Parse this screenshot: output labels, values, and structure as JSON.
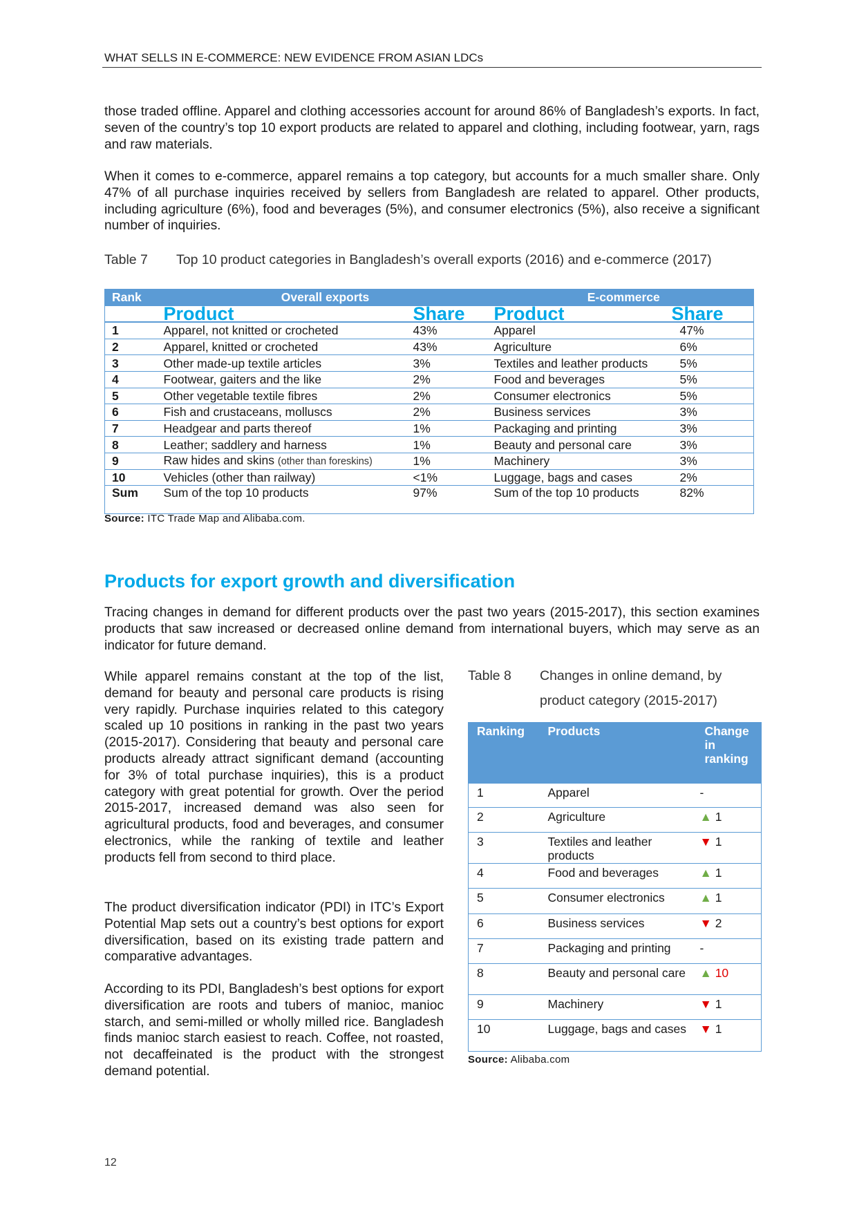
{
  "header": "WHAT SELLS IN E-COMMERCE: NEW EVIDENCE FROM ASIAN LDCs",
  "paragraphs": [
    "those traded offline. Apparel and clothing accessories account for around 86% of Bangladesh’s exports. In fact, seven of the country’s top 10 export products are related to apparel and clothing, including footwear, yarn, rags and raw materials.",
    "When it comes to e-commerce, apparel remains a top category, but accounts for a much smaller share. Only 47% of all purchase inquiries received by sellers from Bangladesh are related to apparel. Other products, including agriculture (6%), food and beverages (5%), and consumer electronics (5%), also receive a significant number of inquiries."
  ],
  "table7": {
    "label": "Table 7",
    "title": "Top 10 product categories in Bangladesh’s overall exports (2016) and e-commerce (2017)",
    "h_rank": "Rank",
    "h_overall": "Overall exports",
    "h_ecom": "E-commerce",
    "h_product": "Product",
    "h_share": "Share",
    "rows": [
      {
        "rank": "1",
        "p1": "Apparel, not knitted or crocheted",
        "s1": "43%",
        "p2": "Apparel",
        "s2": "47%"
      },
      {
        "rank": "2",
        "p1": "Apparel, knitted or crocheted",
        "s1": "43%",
        "p2": "Agriculture",
        "s2": "6%"
      },
      {
        "rank": "3",
        "p1": "Other made-up textile articles",
        "s1": "3%",
        "p2": "Textiles and leather products",
        "s2": "5%"
      },
      {
        "rank": "4",
        "p1": "Footwear, gaiters and the like",
        "s1": "2%",
        "p2": "Food and beverages",
        "s2": "5%"
      },
      {
        "rank": "5",
        "p1": "Other vegetable textile fibres",
        "s1": "2%",
        "p2": "Consumer electronics",
        "s2": "5%"
      },
      {
        "rank": "6",
        "p1": "Fish and crustaceans, molluscs",
        "s1": "2%",
        "p2": "Business services",
        "s2": "3%"
      },
      {
        "rank": "7",
        "p1": "Headgear and parts thereof",
        "s1": "1%",
        "p2": "Packaging and printing",
        "s2": "3%"
      },
      {
        "rank": "8",
        "p1": "Leather; saddlery and harness",
        "s1": "1%",
        "p2": "Beauty and personal care",
        "s2": "3%"
      },
      {
        "rank": "9",
        "p1": "Raw hides and skins",
        "p1_note": "(other than foreskins)",
        "s1": "1%",
        "p2": "Machinery",
        "s2": "3%"
      },
      {
        "rank": "10",
        "p1": "Vehicles (other than railway)",
        "s1": "<1%",
        "p2": "Luggage, bags and cases",
        "s2": "2%"
      },
      {
        "rank": "Sum",
        "p1": "Sum of the top 10 products",
        "s1": "97%",
        "p2": "Sum of the top 10 products",
        "s2": "82%"
      }
    ],
    "source_label": "Source:",
    "source": "ITC Trade Map and Alibaba.com."
  },
  "section_heading": "Products for export growth and diversification",
  "intro": "Tracing changes in demand for different products over the past two years (2015-2017), this section examines products that saw increased or decreased online demand from international buyers, which may serve as an indicator for future demand.",
  "left_paragraphs": [
    "While apparel remains constant at the top of the list, demand for beauty and personal care products is rising very rapidly. Purchase inquiries related to this category scaled up 10 positions in ranking in the past two years (2015-2017). Considering that beauty and personal care products already attract significant demand (accounting for 3% of total purchase inquiries), this is a product category with great potential for growth. Over the period 2015-2017, increased demand was also seen for agricultural products, food and beverages, and consumer electronics, while the ranking of textile and leather products fell from second to third place.",
    "The product diversification indicator (PDI) in ITC’s Export Potential Map sets out a country’s best options for export diversification, based on its existing trade pattern and comparative advantages.",
    "According to its PDI, Bangladesh’s best options for export diversification are roots and tubers of manioc, manioc starch, and semi-milled or wholly milled rice. Bangladesh finds manioc starch easiest to reach. Coffee, not roasted, not decaffeinated is the product with the strongest demand potential."
  ],
  "table8": {
    "label": "Table 8",
    "title": "Changes in online demand, by product category (2015-2017)",
    "h_ranking": "Ranking",
    "h_products": "Products",
    "h_change": "Change in ranking",
    "rows": [
      {
        "rank": "1",
        "product": "Apparel",
        "dir": "none",
        "change": "-"
      },
      {
        "rank": "2",
        "product": "Agriculture",
        "dir": "up",
        "change": "1"
      },
      {
        "rank": "3",
        "product": "Textiles and leather products",
        "dir": "down",
        "change": "1"
      },
      {
        "rank": "4",
        "product": "Food and beverages",
        "dir": "up",
        "change": "1"
      },
      {
        "rank": "5",
        "product": "Consumer electronics",
        "dir": "up",
        "change": "1"
      },
      {
        "rank": "6",
        "product": "Business services",
        "dir": "down",
        "change": "2"
      },
      {
        "rank": "7",
        "product": "Packaging and printing",
        "dir": "none",
        "change": "-"
      },
      {
        "rank": "8",
        "product": "Beauty and personal care",
        "dir": "up",
        "change": "10",
        "highlight": true
      },
      {
        "rank": "9",
        "product": "Machinery",
        "dir": "down",
        "change": "1"
      },
      {
        "rank": "10",
        "product": "Luggage, bags and cases",
        "dir": "down",
        "change": "1"
      }
    ],
    "source_label": "Source:",
    "source": "Alibaba.com"
  },
  "page_number": "12"
}
